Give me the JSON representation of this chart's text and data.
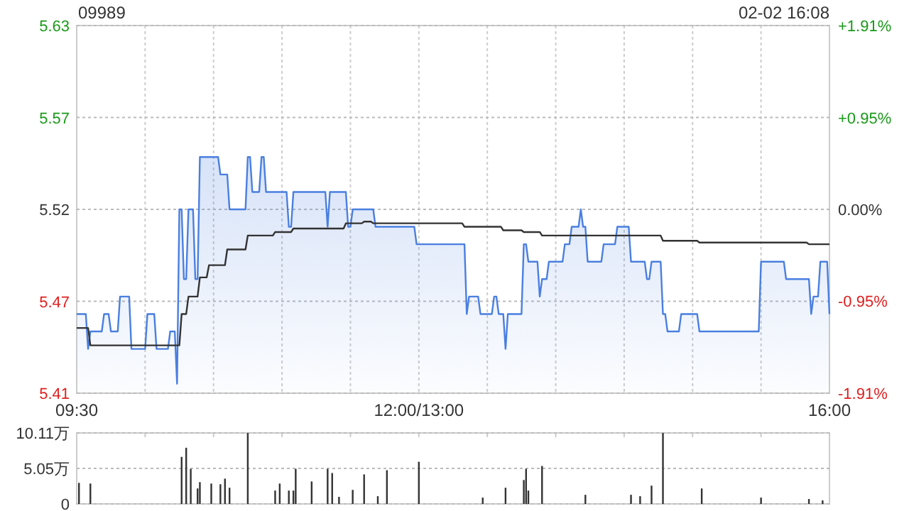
{
  "chart_data": [
    {
      "type": "line",
      "title": "09989",
      "annotations": [
        "02-02 16:08"
      ],
      "categories": [
        "09:30",
        null,
        null,
        null,
        null,
        null,
        null,
        null,
        null,
        null,
        null,
        null,
        null,
        null,
        null,
        null,
        null,
        null,
        null,
        null,
        null,
        null,
        null,
        null,
        null,
        null,
        null,
        null,
        null,
        null,
        null,
        null,
        null,
        null,
        null,
        null,
        null,
        null,
        null,
        null,
        null,
        null,
        null,
        null,
        null,
        null,
        null,
        null,
        null,
        null,
        null,
        null,
        null,
        null,
        null,
        null,
        null,
        null,
        null,
        null,
        null,
        null,
        null,
        null,
        null,
        null,
        null,
        null,
        null,
        null,
        null,
        null,
        null,
        null,
        null,
        null,
        null,
        null,
        null,
        null,
        null,
        null,
        null,
        null,
        null,
        null,
        null,
        null,
        null,
        null,
        null,
        null,
        null,
        null,
        null,
        null,
        null,
        null,
        null,
        null,
        null,
        null,
        null,
        null,
        null,
        null,
        null,
        null,
        null,
        null,
        null,
        null,
        null,
        null,
        null,
        null,
        null,
        null,
        null,
        null,
        null,
        null,
        null,
        null,
        null,
        null,
        null,
        null,
        null,
        null,
        null,
        null,
        null,
        null,
        null,
        null,
        null,
        null,
        null,
        null,
        null,
        null,
        null,
        null,
        null,
        null,
        null,
        null,
        null,
        null,
        "12:00/13:00",
        null,
        null,
        null,
        null,
        null,
        null,
        null,
        null,
        null,
        null,
        null,
        null,
        null,
        null,
        null,
        null,
        null,
        null,
        null,
        null,
        null,
        null,
        null,
        null,
        null,
        null,
        null,
        null,
        null,
        null,
        null,
        null,
        null,
        null,
        null,
        null,
        null,
        null,
        null,
        null,
        null,
        null,
        null,
        null,
        null,
        null,
        null,
        null,
        null,
        null,
        null,
        null,
        null,
        null,
        null,
        null,
        null,
        null,
        null,
        null,
        null,
        null,
        null,
        null,
        null,
        null,
        null,
        null,
        null,
        null,
        null,
        null,
        null,
        null,
        null,
        null,
        null,
        null,
        null,
        null,
        null,
        null,
        null,
        null,
        null,
        null,
        null,
        null,
        null,
        null,
        null,
        null,
        null,
        null,
        null,
        null,
        null,
        null,
        null,
        null,
        null,
        null,
        null,
        null,
        null,
        null,
        null,
        null,
        null,
        null,
        null,
        null,
        null,
        null,
        null,
        null,
        null,
        null,
        null,
        null,
        null,
        null,
        null,
        null,
        null,
        null,
        null,
        null,
        null,
        null,
        null,
        null,
        null,
        null,
        null,
        null,
        null,
        null,
        null,
        null,
        null,
        null,
        null,
        null,
        null,
        null,
        null,
        null,
        null,
        null,
        null,
        null,
        null,
        null,
        null,
        null,
        null,
        null,
        null,
        null,
        null,
        null,
        null,
        null,
        null,
        null,
        null,
        null,
        null,
        null,
        null,
        null,
        null,
        null,
        null,
        null,
        null,
        null,
        null,
        "16:00"
      ],
      "ylim": [
        5.4146,
        5.6254
      ],
      "yticks": [
        {
          "value": 5.4146,
          "label": "5.41"
        },
        {
          "value": 5.4673,
          "label": "5.47"
        },
        {
          "value": 5.52,
          "label": "5.52"
        },
        {
          "value": 5.5727,
          "label": "5.57"
        },
        {
          "value": 5.6254,
          "label": "5.63"
        }
      ],
      "y2lim": [
        -1.91,
        1.91
      ],
      "y2ticks": [
        {
          "value": -1.91,
          "label": "-1.91%"
        },
        {
          "value": -0.95,
          "label": "-0.95%"
        },
        {
          "value": 0,
          "label": "0.00%"
        },
        {
          "value": 0.95,
          "label": "+0.95%"
        },
        {
          "value": 1.91,
          "label": "+1.91%"
        }
      ],
      "grid": true,
      "series": [
        {
          "type": "area",
          "color": "#4a7fe0",
          "values": [
            5.46,
            5.46,
            5.46,
            5.46,
            5.46,
            5.44,
            5.45,
            5.45,
            5.45,
            5.45,
            5.45,
            5.45,
            5.46,
            5.46,
            5.46,
            5.45,
            5.45,
            5.45,
            5.45,
            5.47,
            5.47,
            5.47,
            5.47,
            5.47,
            5.44,
            5.44,
            5.44,
            5.44,
            5.44,
            5.44,
            5.44,
            5.46,
            5.46,
            5.46,
            5.46,
            5.44,
            5.44,
            5.44,
            5.44,
            5.44,
            5.44,
            5.45,
            5.45,
            5.45,
            5.42,
            5.52,
            5.52,
            5.48,
            5.48,
            5.52,
            5.52,
            5.52,
            5.48,
            5.48,
            5.55,
            5.55,
            5.55,
            5.55,
            5.55,
            5.55,
            5.55,
            5.55,
            5.55,
            5.54,
            5.54,
            5.54,
            5.54,
            5.52,
            5.52,
            5.52,
            5.52,
            5.52,
            5.52,
            5.52,
            5.52,
            5.55,
            5.55,
            5.53,
            5.53,
            5.53,
            5.53,
            5.55,
            5.55,
            5.53,
            5.53,
            5.53,
            5.53,
            5.53,
            5.53,
            5.53,
            5.53,
            5.53,
            5.53,
            5.51,
            5.51,
            5.53,
            5.53,
            5.53,
            5.53,
            5.53,
            5.53,
            5.53,
            5.53,
            5.53,
            5.53,
            5.53,
            5.53,
            5.53,
            5.53,
            5.53,
            5.51,
            5.53,
            5.53,
            5.53,
            5.53,
            5.53,
            5.53,
            5.53,
            5.53,
            5.51,
            5.51,
            5.52,
            5.52,
            5.52,
            5.52,
            5.52,
            5.52,
            5.52,
            5.52,
            5.52,
            5.52,
            5.51,
            5.51,
            5.51,
            5.51,
            5.51,
            5.51,
            5.51,
            5.51,
            5.51,
            5.51,
            5.51,
            5.51,
            5.51,
            5.51,
            5.51,
            5.51,
            5.51,
            5.51,
            5.5,
            5.5,
            5.5,
            5.5,
            5.5,
            5.5,
            5.5,
            5.5,
            5.5,
            5.5,
            5.5,
            5.5,
            5.5,
            5.5,
            5.5,
            5.5,
            5.5,
            5.5,
            5.5,
            5.5,
            5.5,
            5.5,
            5.46,
            5.47,
            5.47,
            5.47,
            5.47,
            5.47,
            5.46,
            5.46,
            5.46,
            5.46,
            5.46,
            5.46,
            5.47,
            5.47,
            5.46,
            5.46,
            5.46,
            5.44,
            5.46,
            5.46,
            5.46,
            5.46,
            5.46,
            5.46,
            5.46,
            5.5,
            5.5,
            5.49,
            5.49,
            5.49,
            5.49,
            5.49,
            5.47,
            5.48,
            5.48,
            5.48,
            5.49,
            5.49,
            5.49,
            5.49,
            5.49,
            5.49,
            5.49,
            5.5,
            5.5,
            5.5,
            5.51,
            5.51,
            5.51,
            5.51,
            5.52,
            5.51,
            5.51,
            5.49,
            5.49,
            5.49,
            5.49,
            5.49,
            5.49,
            5.49,
            5.5,
            5.5,
            5.5,
            5.5,
            5.5,
            5.5,
            5.51,
            5.51,
            5.51,
            5.51,
            5.51,
            5.51,
            5.49,
            5.49,
            5.49,
            5.49,
            5.49,
            5.49,
            5.49,
            5.48,
            5.48,
            5.49,
            5.49,
            5.49,
            5.49,
            5.49,
            5.46,
            5.46,
            5.45,
            5.45,
            5.45,
            5.45,
            5.45,
            5.45,
            5.46,
            5.46,
            5.46,
            5.46,
            5.46,
            5.46,
            5.46,
            5.46,
            5.45,
            5.45,
            5.45,
            5.45,
            5.45,
            5.45,
            5.45,
            5.45,
            5.45,
            5.45,
            5.45,
            5.45,
            5.45,
            5.45,
            5.45,
            5.45,
            5.45,
            5.45,
            5.45,
            5.45,
            5.45,
            5.45,
            5.45,
            5.45,
            5.45,
            5.45,
            5.45,
            5.49,
            5.49,
            5.49,
            5.49,
            5.49,
            5.49,
            5.49,
            5.49,
            5.49,
            5.49,
            5.49,
            5.48,
            5.48,
            5.48,
            5.48,
            5.48,
            5.48,
            5.48,
            5.48,
            5.48,
            5.48,
            5.48,
            5.46,
            5.47,
            5.47,
            5.47,
            5.49,
            5.49,
            5.49,
            5.49,
            5.46
          ]
        },
        {
          "color": "#333333",
          "values": [
            5.452,
            5.452,
            5.452,
            5.452,
            5.452,
            5.452,
            5.442,
            5.442,
            5.442,
            5.442,
            5.442,
            5.442,
            5.442,
            5.442,
            5.442,
            5.442,
            5.442,
            5.442,
            5.442,
            5.442,
            5.442,
            5.442,
            5.442,
            5.442,
            5.442,
            5.442,
            5.442,
            5.442,
            5.442,
            5.442,
            5.442,
            5.442,
            5.442,
            5.442,
            5.442,
            5.442,
            5.442,
            5.442,
            5.442,
            5.442,
            5.442,
            5.442,
            5.442,
            5.442,
            5.442,
            5.442,
            5.46,
            5.46,
            5.46,
            5.47,
            5.47,
            5.47,
            5.47,
            5.47,
            5.481,
            5.481,
            5.481,
            5.481,
            5.488,
            5.488,
            5.488,
            5.488,
            5.488,
            5.488,
            5.488,
            5.488,
            5.497,
            5.497,
            5.497,
            5.497,
            5.497,
            5.497,
            5.497,
            5.497,
            5.497,
            5.505,
            5.505,
            5.505,
            5.505,
            5.505,
            5.505,
            5.505,
            5.505,
            5.505,
            5.505,
            5.505,
            5.505,
            5.507,
            5.507,
            5.507,
            5.507,
            5.507,
            5.507,
            5.507,
            5.507,
            5.509,
            5.509,
            5.509,
            5.509,
            5.509,
            5.509,
            5.509,
            5.509,
            5.509,
            5.509,
            5.509,
            5.509,
            5.509,
            5.509,
            5.509,
            5.509,
            5.509,
            5.509,
            5.509,
            5.509,
            5.509,
            5.509,
            5.509,
            5.512,
            5.512,
            5.512,
            5.512,
            5.512,
            5.512,
            5.512,
            5.512,
            5.513,
            5.513,
            5.513,
            5.513,
            5.512,
            5.512,
            5.512,
            5.512,
            5.512,
            5.512,
            5.512,
            5.512,
            5.512,
            5.512,
            5.512,
            5.512,
            5.512,
            5.512,
            5.512,
            5.512,
            5.512,
            5.512,
            5.512,
            5.512,
            5.512,
            5.512,
            5.512,
            5.512,
            5.512,
            5.512,
            5.512,
            5.512,
            5.512,
            5.512,
            5.512,
            5.512,
            5.512,
            5.512,
            5.512,
            5.512,
            5.512,
            5.512,
            5.512,
            5.512,
            5.51,
            5.51,
            5.51,
            5.51,
            5.51,
            5.51,
            5.51,
            5.51,
            5.51,
            5.51,
            5.51,
            5.51,
            5.51,
            5.51,
            5.51,
            5.51,
            5.51,
            5.508,
            5.508,
            5.508,
            5.508,
            5.508,
            5.508,
            5.508,
            5.508,
            5.508,
            5.507,
            5.507,
            5.507,
            5.507,
            5.507,
            5.507,
            5.507,
            5.507,
            5.505,
            5.505,
            5.505,
            5.505,
            5.505,
            5.505,
            5.505,
            5.505,
            5.505,
            5.505,
            5.505,
            5.505,
            5.505,
            5.505,
            5.505,
            5.505,
            5.505,
            5.505,
            5.505,
            5.505,
            5.505,
            5.505,
            5.505,
            5.505,
            5.505,
            5.505,
            5.505,
            5.505,
            5.505,
            5.505,
            5.505,
            5.505,
            5.505,
            5.505,
            5.505,
            5.505,
            5.505,
            5.505,
            5.505,
            5.505,
            5.505,
            5.505,
            5.505,
            5.505,
            5.505,
            5.505,
            5.505,
            5.505,
            5.505,
            5.505,
            5.505,
            5.505,
            5.505,
            5.502,
            5.502,
            5.502,
            5.502,
            5.502,
            5.502,
            5.502,
            5.502,
            5.502,
            5.502,
            5.502,
            5.502,
            5.502,
            5.502,
            5.502,
            5.502,
            5.501,
            5.501,
            5.501,
            5.501,
            5.501,
            5.501,
            5.501,
            5.501,
            5.501,
            5.501,
            5.501,
            5.501,
            5.501,
            5.501,
            5.501,
            5.501,
            5.501,
            5.501,
            5.501,
            5.501,
            5.501,
            5.501,
            5.501,
            5.501,
            5.501,
            5.501,
            5.501,
            5.501,
            5.501,
            5.501,
            5.501,
            5.501,
            5.501,
            5.501,
            5.501,
            5.501,
            5.501,
            5.501,
            5.501,
            5.501,
            5.501,
            5.501,
            5.501,
            5.501,
            5.501,
            5.501,
            5.501,
            5.501,
            5.5,
            5.5,
            5.5,
            5.5,
            5.5,
            5.5,
            5.5,
            5.5,
            5.5,
            5.5
          ]
        }
      ]
    },
    {
      "type": "bar",
      "color": "#333333",
      "categories": [
        null,
        null,
        null,
        null,
        null,
        null,
        null,
        null,
        null,
        null,
        null,
        null,
        null,
        null,
        null,
        null,
        null,
        null,
        null,
        null,
        null,
        null,
        null,
        null,
        null,
        null,
        null,
        null,
        null,
        null,
        null,
        null,
        null,
        null,
        null,
        null,
        null,
        null,
        null,
        null,
        null,
        null,
        null,
        null,
        null,
        null,
        null,
        null,
        null,
        null,
        null,
        null,
        null,
        null,
        null,
        null,
        null,
        null,
        null,
        null,
        null,
        null,
        null,
        null,
        null,
        null,
        null,
        null,
        null,
        null,
        null,
        null,
        null,
        null,
        null,
        null,
        null,
        null,
        null,
        null,
        null,
        null,
        null,
        null,
        null,
        null,
        null,
        null,
        null,
        null,
        null,
        null,
        null,
        null,
        null,
        null,
        null,
        null,
        null,
        null,
        null,
        null,
        null,
        null,
        null,
        null,
        null,
        null,
        null,
        null,
        null,
        null,
        null,
        null,
        null,
        null,
        null,
        null,
        null,
        null,
        null,
        null,
        null,
        null,
        null,
        null,
        null,
        null,
        null,
        null,
        null,
        null,
        null,
        null,
        null,
        null,
        null,
        null,
        null,
        null,
        null,
        null,
        null,
        null,
        null,
        null,
        null,
        null,
        null,
        null,
        null,
        null,
        null,
        null,
        null,
        null,
        null,
        null,
        null,
        null,
        null,
        null,
        null,
        null,
        null,
        null,
        null,
        null,
        null,
        null,
        null,
        null,
        null,
        null,
        null,
        null,
        null,
        null,
        null,
        null,
        null,
        null,
        null,
        null,
        null,
        null,
        null,
        null,
        null,
        null,
        null,
        null,
        null,
        null,
        null,
        null,
        null,
        null,
        null,
        null,
        null,
        null,
        null,
        null,
        null,
        null,
        null,
        null,
        null,
        null,
        null,
        null,
        null,
        null,
        null,
        null,
        null,
        null,
        null,
        null,
        null,
        null,
        null,
        null,
        null,
        null,
        null,
        null,
        null,
        null,
        null,
        null,
        null,
        null,
        null,
        null,
        null,
        null,
        null,
        null,
        null,
        null,
        null,
        null,
        null,
        null,
        null,
        null,
        null,
        null,
        null,
        null,
        null,
        null,
        null,
        null,
        null,
        null,
        null,
        null,
        null,
        null,
        null,
        null,
        null,
        null,
        null,
        null,
        null,
        null,
        null,
        null,
        null,
        null,
        null,
        null,
        null,
        null,
        null,
        null,
        null,
        null,
        null,
        null,
        null,
        null,
        null,
        null,
        null,
        null,
        null,
        null,
        null,
        null,
        null,
        null,
        null,
        null,
        null,
        null,
        null,
        null,
        null,
        null,
        null,
        null,
        null,
        null,
        null,
        null,
        null,
        null,
        null,
        null,
        null,
        null,
        null,
        null,
        null,
        null,
        null,
        null,
        null,
        null,
        null,
        null,
        null,
        null,
        null,
        null,
        null
      ],
      "ylim": [
        0,
        10.11
      ],
      "yticks": [
        0,
        {
          "value": 5.05,
          "label": "5.05万"
        },
        {
          "value": 10.11,
          "label": "10.11万"
        }
      ],
      "grid": "y",
      "values": [
        null,
        3.0,
        null,
        null,
        null,
        null,
        2.9,
        null,
        null,
        null,
        null,
        null,
        null,
        null,
        null,
        null,
        null,
        null,
        null,
        null,
        null,
        null,
        null,
        null,
        null,
        null,
        null,
        null,
        null,
        null,
        null,
        null,
        null,
        null,
        null,
        null,
        null,
        null,
        null,
        null,
        null,
        null,
        null,
        null,
        null,
        null,
        6.7,
        null,
        8.0,
        null,
        5.0,
        null,
        null,
        2.2,
        3.1,
        null,
        null,
        null,
        null,
        2.9,
        null,
        null,
        null,
        2.8,
        null,
        3.6,
        null,
        2.3,
        null,
        null,
        null,
        null,
        null,
        null,
        null,
        10.1,
        null,
        null,
        null,
        null,
        null,
        null,
        null,
        null,
        null,
        null,
        null,
        1.9,
        null,
        2.9,
        null,
        null,
        null,
        1.9,
        null,
        1.9,
        5.0,
        null,
        null,
        null,
        null,
        null,
        null,
        3.2,
        null,
        null,
        null,
        null,
        null,
        null,
        5.0,
        null,
        4.4,
        null,
        null,
        1.0,
        null,
        null,
        null,
        null,
        null,
        2.0,
        null,
        null,
        null,
        null,
        4.2,
        null,
        null,
        null,
        null,
        null,
        1.1,
        null,
        null,
        null,
        4.8,
        null,
        null,
        null,
        null,
        null,
        null,
        null,
        null,
        null,
        null,
        null,
        null,
        null,
        6.0,
        null,
        null,
        null,
        null,
        null,
        null,
        null,
        null,
        null,
        null,
        null,
        null,
        null,
        null,
        null,
        null,
        null,
        null,
        null,
        null,
        null,
        null,
        null,
        null,
        null,
        null,
        null,
        0.9,
        null,
        null,
        null,
        null,
        null,
        null,
        null,
        null,
        null,
        2.3,
        null,
        null,
        null,
        null,
        null,
        null,
        null,
        3.4,
        5.0,
        1.9,
        null,
        null,
        null,
        null,
        null,
        5.4,
        null,
        null,
        null,
        null,
        null,
        null,
        null,
        null,
        null,
        null,
        null,
        null,
        null,
        null,
        null,
        null,
        null,
        null,
        1.3,
        null,
        null,
        null,
        null,
        null,
        null,
        null,
        null,
        null,
        null,
        null,
        null,
        null,
        null,
        null,
        null,
        null,
        null,
        null,
        1.3,
        null,
        null,
        null,
        1.1,
        null,
        null,
        null,
        null,
        2.6,
        null,
        null,
        null,
        null,
        10.1,
        null,
        null,
        null,
        null,
        null,
        null,
        null,
        null,
        null,
        null,
        null,
        null,
        null,
        null,
        null,
        null,
        2.2,
        null,
        null,
        null,
        null,
        null,
        null,
        null,
        null,
        null,
        null,
        null,
        null,
        null,
        null,
        null,
        null,
        null,
        null,
        null,
        null,
        null,
        null,
        null,
        null,
        null,
        0.9,
        null,
        null,
        null,
        null,
        null,
        null,
        null,
        null,
        null,
        null,
        null,
        null,
        null,
        null,
        null,
        null,
        null,
        null,
        null,
        null,
        0.7,
        null,
        null,
        null,
        null,
        null,
        0.5,
        null,
        null,
        null
      ]
    }
  ]
}
